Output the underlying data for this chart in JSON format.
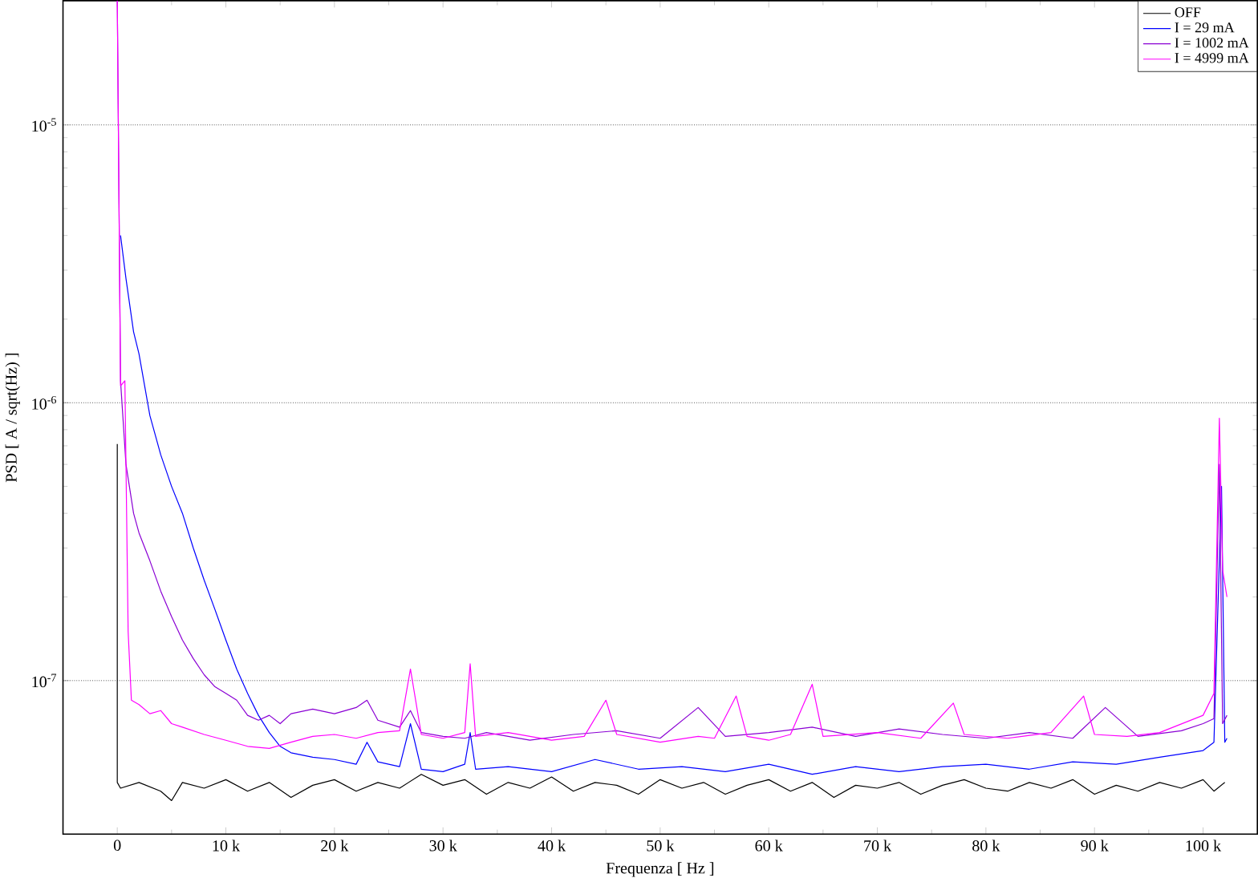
{
  "chart_data": {
    "type": "line",
    "xlabel": "Frequenza [ Hz ]",
    "ylabel": "PSD  [ A / sqrt(Hz) ]",
    "log": "y",
    "grid": "y",
    "legend": "top right",
    "xlim": [
      -5000,
      105000
    ],
    "ylim": [
      2.8e-08,
      2.8e-05
    ],
    "xticks": [
      {
        "value": 0,
        "label": "0"
      },
      {
        "value": 10000,
        "label": "10 k"
      },
      {
        "value": 20000,
        "label": "20 k"
      },
      {
        "value": 30000,
        "label": "30 k"
      },
      {
        "value": 40000,
        "label": "40 k"
      },
      {
        "value": 50000,
        "label": "50 k"
      },
      {
        "value": 60000,
        "label": "60 k"
      },
      {
        "value": 70000,
        "label": "70 k"
      },
      {
        "value": 80000,
        "label": "80 k"
      },
      {
        "value": 90000,
        "label": "90 k"
      },
      {
        "value": 100000,
        "label": "100 k"
      }
    ],
    "yticks": [
      {
        "value": 1e-07,
        "label": "10$^{-7}$"
      },
      {
        "value": 1e-06,
        "label": "10$^{-6}$"
      },
      {
        "value": 1e-05,
        "label": "10$^{-5}$"
      }
    ],
    "series": [
      {
        "name": "OFF",
        "color": "#000000",
        "x": [
          0,
          0,
          300,
          2000,
          4000,
          5000,
          6000,
          8000,
          10000,
          12000,
          14000,
          16000,
          18000,
          20000,
          22000,
          24000,
          26000,
          28000,
          30000,
          32000,
          34000,
          36000,
          38000,
          40000,
          42000,
          44000,
          46000,
          48000,
          50000,
          52000,
          54000,
          56000,
          58000,
          60000,
          62000,
          64000,
          66000,
          68000,
          70000,
          72000,
          74000,
          76000,
          78000,
          80000,
          82000,
          84000,
          86000,
          88000,
          90000,
          92000,
          94000,
          96000,
          98000,
          100000,
          101000,
          102000
        ],
        "values": [
          7.1e-07,
          4.3e-08,
          4.1e-08,
          4.3e-08,
          4e-08,
          3.7e-08,
          4.3e-08,
          4.1e-08,
          4.4e-08,
          4e-08,
          4.3e-08,
          3.8e-08,
          4.2e-08,
          4.4e-08,
          4e-08,
          4.3e-08,
          4.1e-08,
          4.6e-08,
          4.2e-08,
          4.4e-08,
          3.9e-08,
          4.3e-08,
          4.1e-08,
          4.5e-08,
          4e-08,
          4.3e-08,
          4.2e-08,
          3.9e-08,
          4.4e-08,
          4.1e-08,
          4.3e-08,
          3.9e-08,
          4.2e-08,
          4.4e-08,
          4e-08,
          4.3e-08,
          3.8e-08,
          4.2e-08,
          4.1e-08,
          4.3e-08,
          3.9e-08,
          4.2e-08,
          4.4e-08,
          4.1e-08,
          4e-08,
          4.3e-08,
          4.1e-08,
          4.4e-08,
          3.9e-08,
          4.2e-08,
          4e-08,
          4.3e-08,
          4.1e-08,
          4.4e-08,
          4e-08,
          4.3e-08
        ]
      },
      {
        "name": "I = 29 mA",
        "color": "#0000ff",
        "x": [
          300,
          800,
          1500,
          2000,
          3000,
          4000,
          5000,
          6000,
          7000,
          8000,
          9000,
          10000,
          11000,
          12000,
          13000,
          14000,
          15000,
          16000,
          18000,
          20000,
          22000,
          23000,
          24000,
          26000,
          27000,
          28000,
          30000,
          32000,
          32500,
          33000,
          36000,
          40000,
          44000,
          48000,
          52000,
          56000,
          60000,
          64000,
          68000,
          72000,
          76000,
          80000,
          84000,
          88000,
          92000,
          96000,
          100000,
          101000,
          101700,
          102000,
          102200
        ],
        "values": [
          4e-06,
          2.8e-06,
          1.8e-06,
          1.5e-06,
          9e-07,
          6.5e-07,
          5e-07,
          4e-07,
          3e-07,
          2.3e-07,
          1.8e-07,
          1.4e-07,
          1.1e-07,
          9e-08,
          7.5e-08,
          6.5e-08,
          5.8e-08,
          5.5e-08,
          5.3e-08,
          5.2e-08,
          5e-08,
          6e-08,
          5.1e-08,
          4.9e-08,
          7e-08,
          4.8e-08,
          4.7e-08,
          5e-08,
          6.5e-08,
          4.8e-08,
          4.9e-08,
          4.7e-08,
          5.2e-08,
          4.8e-08,
          4.9e-08,
          4.7e-08,
          5e-08,
          4.6e-08,
          4.9e-08,
          4.7e-08,
          4.9e-08,
          5e-08,
          4.8e-08,
          5.1e-08,
          5e-08,
          5.3e-08,
          5.6e-08,
          6e-08,
          5e-07,
          6e-08,
          6.2e-08
        ]
      },
      {
        "name": "I = 1002 mA",
        "color": "#8a00d4",
        "x": [
          0,
          300,
          800,
          1500,
          2000,
          3000,
          4000,
          5000,
          6000,
          7000,
          8000,
          9000,
          10000,
          11000,
          12000,
          13000,
          14000,
          15000,
          16000,
          18000,
          20000,
          22000,
          23000,
          24000,
          26000,
          27000,
          28000,
          30000,
          32000,
          34000,
          38000,
          42000,
          46000,
          50000,
          53500,
          56000,
          60000,
          64000,
          68000,
          72000,
          76000,
          80000,
          84000,
          88000,
          91000,
          94000,
          98000,
          100000,
          101000,
          101500,
          101800,
          102200
        ],
        "values": [
          2.8e-05,
          1.2e-06,
          6e-07,
          4e-07,
          3.4e-07,
          2.7e-07,
          2.1e-07,
          1.7e-07,
          1.4e-07,
          1.2e-07,
          1.05e-07,
          9.5e-08,
          9e-08,
          8.5e-08,
          7.5e-08,
          7.2e-08,
          7.5e-08,
          7e-08,
          7.6e-08,
          7.9e-08,
          7.6e-08,
          8e-08,
          8.5e-08,
          7.2e-08,
          6.8e-08,
          7.8e-08,
          6.5e-08,
          6.3e-08,
          6.2e-08,
          6.5e-08,
          6.1e-08,
          6.4e-08,
          6.6e-08,
          6.2e-08,
          8e-08,
          6.3e-08,
          6.5e-08,
          6.8e-08,
          6.3e-08,
          6.7e-08,
          6.4e-08,
          6.2e-08,
          6.5e-08,
          6.2e-08,
          8e-08,
          6.3e-08,
          6.6e-08,
          7e-08,
          7.3e-08,
          6e-07,
          7e-08,
          7.5e-08
        ]
      },
      {
        "name": "I = 4999 mA",
        "color": "#ff00ff",
        "x": [
          0,
          300,
          700,
          1000,
          1300,
          2000,
          3000,
          4000,
          5000,
          6000,
          8000,
          10000,
          12000,
          14000,
          16000,
          18000,
          20000,
          22000,
          24000,
          26000,
          27000,
          28000,
          30000,
          32000,
          32500,
          33000,
          36000,
          40000,
          43000,
          45000,
          46000,
          50000,
          53500,
          55000,
          57000,
          58000,
          60000,
          62000,
          64000,
          65000,
          70000,
          74000,
          77000,
          78000,
          82000,
          86000,
          89000,
          90000,
          93000,
          96000,
          100000,
          101000,
          101500,
          101800,
          102200
        ],
        "values": [
          2.8e-05,
          1.15e-06,
          1.2e-06,
          1.5e-07,
          8.5e-08,
          8.2e-08,
          7.6e-08,
          7.8e-08,
          7e-08,
          6.8e-08,
          6.4e-08,
          6.1e-08,
          5.8e-08,
          5.7e-08,
          6e-08,
          6.3e-08,
          6.4e-08,
          6.2e-08,
          6.5e-08,
          6.6e-08,
          1.1e-07,
          6.4e-08,
          6.2e-08,
          6.5e-08,
          1.15e-07,
          6.3e-08,
          6.5e-08,
          6.1e-08,
          6.3e-08,
          8.5e-08,
          6.4e-08,
          6e-08,
          6.3e-08,
          6.2e-08,
          8.8e-08,
          6.3e-08,
          6.1e-08,
          6.4e-08,
          9.7e-08,
          6.3e-08,
          6.5e-08,
          6.2e-08,
          8.3e-08,
          6.4e-08,
          6.2e-08,
          6.5e-08,
          8.8e-08,
          6.4e-08,
          6.3e-08,
          6.5e-08,
          7.5e-08,
          9e-08,
          8.8e-07,
          2.5e-07,
          2e-07
        ]
      }
    ]
  }
}
